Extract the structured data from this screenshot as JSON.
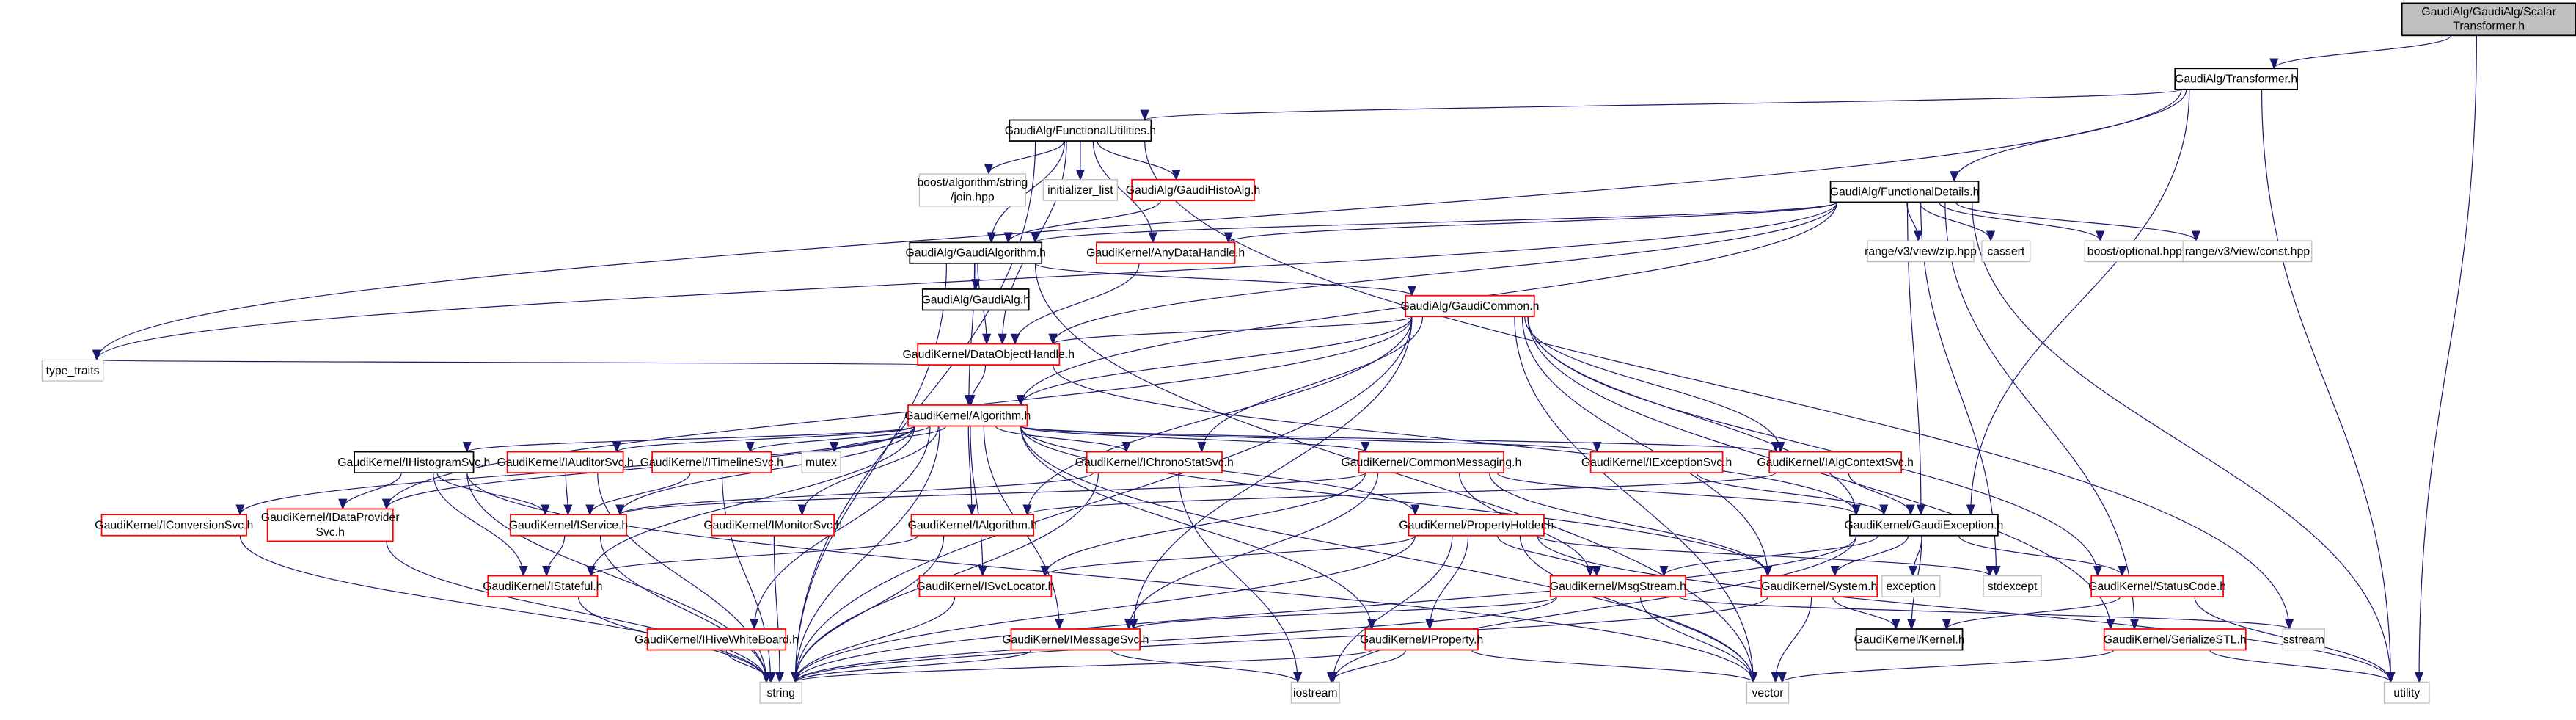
{
  "colors": {
    "edge": "#191970",
    "documented_border": "#ff0000",
    "system_border": "#bfbfbf",
    "local_border": "#000000",
    "root_fill": "#bfbfbf"
  },
  "nodes": [
    {
      "id": "scalar",
      "lines": [
        "GaudiAlg/GaudiAlg/Scalar",
        "Transformer.h"
      ],
      "kind": "root"
    },
    {
      "id": "transformer",
      "lines": [
        "GaudiAlg/Transformer.h"
      ],
      "kind": "local"
    },
    {
      "id": "funcutil",
      "lines": [
        "GaudiAlg/FunctionalUtilities.h"
      ],
      "kind": "local"
    },
    {
      "id": "boostjoin",
      "lines": [
        "boost/algorithm/string",
        "/join.hpp"
      ],
      "kind": "system"
    },
    {
      "id": "initlist",
      "lines": [
        "initializer_list"
      ],
      "kind": "system"
    },
    {
      "id": "histoalg",
      "lines": [
        "GaudiAlg/GaudiHistoAlg.h"
      ],
      "kind": "red"
    },
    {
      "id": "funcdetails",
      "lines": [
        "GaudiAlg/FunctionalDetails.h"
      ],
      "kind": "local"
    },
    {
      "id": "gaudialgorithm",
      "lines": [
        "GaudiAlg/GaudiAlgorithm.h"
      ],
      "kind": "local"
    },
    {
      "id": "anydata",
      "lines": [
        "GaudiKernel/AnyDataHandle.h"
      ],
      "kind": "red"
    },
    {
      "id": "zip",
      "lines": [
        "range/v3/view/zip.hpp"
      ],
      "kind": "system"
    },
    {
      "id": "cassert",
      "lines": [
        "cassert"
      ],
      "kind": "system"
    },
    {
      "id": "optional",
      "lines": [
        "boost/optional.hpp"
      ],
      "kind": "system"
    },
    {
      "id": "const",
      "lines": [
        "range/v3/view/const.hpp"
      ],
      "kind": "system"
    },
    {
      "id": "gaudialg",
      "lines": [
        "GaudiAlg/GaudiAlg.h"
      ],
      "kind": "local"
    },
    {
      "id": "gaudicommon",
      "lines": [
        "GaudiAlg/GaudiCommon.h"
      ],
      "kind": "red"
    },
    {
      "id": "dataobj",
      "lines": [
        "GaudiKernel/DataObjectHandle.h"
      ],
      "kind": "red"
    },
    {
      "id": "typetraits",
      "lines": [
        "type_traits"
      ],
      "kind": "system"
    },
    {
      "id": "algorithm",
      "lines": [
        "GaudiKernel/Algorithm.h"
      ],
      "kind": "red"
    },
    {
      "id": "ihisto",
      "lines": [
        "GaudiKernel/IHistogramSvc.h"
      ],
      "kind": "local"
    },
    {
      "id": "iauditor",
      "lines": [
        "GaudiKernel/IAuditorSvc.h"
      ],
      "kind": "red"
    },
    {
      "id": "itimeline",
      "lines": [
        "GaudiKernel/ITimelineSvc.h"
      ],
      "kind": "red"
    },
    {
      "id": "mutex",
      "lines": [
        "mutex"
      ],
      "kind": "system"
    },
    {
      "id": "ichrono",
      "lines": [
        "GaudiKernel/IChronoStatSvc.h"
      ],
      "kind": "red"
    },
    {
      "id": "commonmsg",
      "lines": [
        "GaudiKernel/CommonMessaging.h"
      ],
      "kind": "red"
    },
    {
      "id": "iexception",
      "lines": [
        "GaudiKernel/IExceptionSvc.h"
      ],
      "kind": "red"
    },
    {
      "id": "ialgctx",
      "lines": [
        "GaudiKernel/IAlgContextSvc.h"
      ],
      "kind": "red"
    },
    {
      "id": "iconversion",
      "lines": [
        "GaudiKernel/IConversionSvc.h"
      ],
      "kind": "red"
    },
    {
      "id": "idataprov",
      "lines": [
        "GaudiKernel/IDataProvider",
        "Svc.h"
      ],
      "kind": "red"
    },
    {
      "id": "iservice",
      "lines": [
        "GaudiKernel/IService.h"
      ],
      "kind": "red"
    },
    {
      "id": "imonitor",
      "lines": [
        "GaudiKernel/IMonitorSvc.h"
      ],
      "kind": "red"
    },
    {
      "id": "ialgorithm",
      "lines": [
        "GaudiKernel/IAlgorithm.h"
      ],
      "kind": "red"
    },
    {
      "id": "propholder",
      "lines": [
        "GaudiKernel/PropertyHolder.h"
      ],
      "kind": "red"
    },
    {
      "id": "gaudiexc",
      "lines": [
        "GaudiKernel/GaudiException.h"
      ],
      "kind": "local"
    },
    {
      "id": "istateful",
      "lines": [
        "GaudiKernel/IStateful.h"
      ],
      "kind": "red"
    },
    {
      "id": "isvcloc",
      "lines": [
        "GaudiKernel/ISvcLocator.h"
      ],
      "kind": "red"
    },
    {
      "id": "msgstream",
      "lines": [
        "GaudiKernel/MsgStream.h"
      ],
      "kind": "red"
    },
    {
      "id": "system",
      "lines": [
        "GaudiKernel/System.h"
      ],
      "kind": "red"
    },
    {
      "id": "exception",
      "lines": [
        "exception"
      ],
      "kind": "system"
    },
    {
      "id": "stdexcept",
      "lines": [
        "stdexcept"
      ],
      "kind": "system"
    },
    {
      "id": "statuscode",
      "lines": [
        "GaudiKernel/StatusCode.h"
      ],
      "kind": "red"
    },
    {
      "id": "ihive",
      "lines": [
        "GaudiKernel/IHiveWhiteBoard.h"
      ],
      "kind": "red"
    },
    {
      "id": "imsgsvc",
      "lines": [
        "GaudiKernel/IMessageSvc.h"
      ],
      "kind": "red"
    },
    {
      "id": "iproperty",
      "lines": [
        "GaudiKernel/IProperty.h"
      ],
      "kind": "red"
    },
    {
      "id": "kernel",
      "lines": [
        "GaudiKernel/Kernel.h"
      ],
      "kind": "local"
    },
    {
      "id": "serialize",
      "lines": [
        "GaudiKernel/SerializeSTL.h"
      ],
      "kind": "red"
    },
    {
      "id": "sstream",
      "lines": [
        "sstream"
      ],
      "kind": "system"
    },
    {
      "id": "string",
      "lines": [
        "string"
      ],
      "kind": "system"
    },
    {
      "id": "iostream",
      "lines": [
        "iostream"
      ],
      "kind": "system"
    },
    {
      "id": "vector",
      "lines": [
        "vector"
      ],
      "kind": "system"
    },
    {
      "id": "utility",
      "lines": [
        "utility"
      ],
      "kind": "system"
    }
  ],
  "edges": [
    [
      "scalar",
      "transformer"
    ],
    [
      "scalar",
      "utility"
    ],
    [
      "transformer",
      "funcutil"
    ],
    [
      "transformer",
      "funcdetails"
    ],
    [
      "transformer",
      "typetraits"
    ],
    [
      "transformer",
      "gaudiexc"
    ],
    [
      "transformer",
      "utility"
    ],
    [
      "funcutil",
      "boostjoin"
    ],
    [
      "funcutil",
      "initlist"
    ],
    [
      "funcutil",
      "histoalg"
    ],
    [
      "funcutil",
      "gaudialgorithm"
    ],
    [
      "funcutil",
      "anydata"
    ],
    [
      "funcutil",
      "dataobj"
    ],
    [
      "funcutil",
      "string"
    ],
    [
      "funcutil",
      "sstream"
    ],
    [
      "histoalg",
      "gaudialgorithm"
    ],
    [
      "funcdetails",
      "gaudialgorithm"
    ],
    [
      "funcdetails",
      "anydata"
    ],
    [
      "funcdetails",
      "dataobj"
    ],
    [
      "funcdetails",
      "zip"
    ],
    [
      "funcdetails",
      "cassert"
    ],
    [
      "funcdetails",
      "optional"
    ],
    [
      "funcdetails",
      "const"
    ],
    [
      "funcdetails",
      "algorithm"
    ],
    [
      "funcdetails",
      "typetraits"
    ],
    [
      "funcdetails",
      "gaudiexc"
    ],
    [
      "funcdetails",
      "stdexcept"
    ],
    [
      "funcdetails",
      "utility"
    ],
    [
      "funcdetails",
      "serialize"
    ],
    [
      "gaudialgorithm",
      "gaudialg"
    ],
    [
      "gaudialgorithm",
      "gaudicommon"
    ],
    [
      "gaudialgorithm",
      "dataobj"
    ],
    [
      "gaudialgorithm",
      "algorithm"
    ],
    [
      "gaudialgorithm",
      "string"
    ],
    [
      "gaudialgorithm",
      "vector"
    ],
    [
      "anydata",
      "dataobj"
    ],
    [
      "gaudicommon",
      "dataobj"
    ],
    [
      "gaudicommon",
      "algorithm"
    ],
    [
      "gaudicommon",
      "ichrono"
    ],
    [
      "gaudicommon",
      "ialgctx"
    ],
    [
      "gaudicommon",
      "gaudiexc"
    ],
    [
      "gaudicommon",
      "statuscode"
    ],
    [
      "gaudicommon",
      "system"
    ],
    [
      "gaudicommon",
      "string"
    ],
    [
      "gaudicommon",
      "vector"
    ],
    [
      "gaudicommon",
      "ialgorithm"
    ],
    [
      "gaudicommon",
      "idataprov"
    ],
    [
      "gaudicommon",
      "imsgsvc"
    ],
    [
      "gaudicommon",
      "serialize"
    ],
    [
      "dataobj",
      "algorithm"
    ],
    [
      "dataobj",
      "typetraits"
    ],
    [
      "dataobj",
      "gaudiexc"
    ],
    [
      "algorithm",
      "ihisto"
    ],
    [
      "algorithm",
      "iauditor"
    ],
    [
      "algorithm",
      "itimeline"
    ],
    [
      "algorithm",
      "mutex"
    ],
    [
      "algorithm",
      "ichrono"
    ],
    [
      "algorithm",
      "commonmsg"
    ],
    [
      "algorithm",
      "iexception"
    ],
    [
      "algorithm",
      "ialgctx"
    ],
    [
      "algorithm",
      "iconversion"
    ],
    [
      "algorithm",
      "idataprov"
    ],
    [
      "algorithm",
      "iservice"
    ],
    [
      "algorithm",
      "imonitor"
    ],
    [
      "algorithm",
      "ialgorithm"
    ],
    [
      "algorithm",
      "propholder"
    ],
    [
      "algorithm",
      "istateful"
    ],
    [
      "algorithm",
      "isvcloc"
    ],
    [
      "algorithm",
      "imsgsvc"
    ],
    [
      "algorithm",
      "iproperty"
    ],
    [
      "algorithm",
      "ihive"
    ],
    [
      "algorithm",
      "system"
    ],
    [
      "algorithm",
      "string"
    ],
    [
      "algorithm",
      "vector"
    ],
    [
      "ihisto",
      "idataprov"
    ],
    [
      "ihisto",
      "iservice"
    ],
    [
      "ihisto",
      "string"
    ],
    [
      "ihisto",
      "istateful"
    ],
    [
      "ihisto",
      "vector"
    ],
    [
      "iauditor",
      "iservice"
    ],
    [
      "iauditor",
      "string"
    ],
    [
      "itimeline",
      "iservice"
    ],
    [
      "itimeline",
      "string"
    ],
    [
      "ichrono",
      "iservice"
    ],
    [
      "ichrono",
      "string"
    ],
    [
      "ichrono",
      "iostream"
    ],
    [
      "commonmsg",
      "iservice"
    ],
    [
      "commonmsg",
      "msgstream"
    ],
    [
      "commonmsg",
      "imsgsvc"
    ],
    [
      "commonmsg",
      "isvcloc"
    ],
    [
      "commonmsg",
      "gaudiexc"
    ],
    [
      "commonmsg",
      "system"
    ],
    [
      "iexception",
      "gaudiexc"
    ],
    [
      "ialgctx",
      "gaudiexc"
    ],
    [
      "ialgctx",
      "ialgorithm"
    ],
    [
      "iconversion",
      "string"
    ],
    [
      "idataprov",
      "string"
    ],
    [
      "iservice",
      "istateful"
    ],
    [
      "iservice",
      "string"
    ],
    [
      "imonitor",
      "string"
    ],
    [
      "ialgorithm",
      "istateful"
    ],
    [
      "ialgorithm",
      "string"
    ],
    [
      "propholder",
      "iproperty"
    ],
    [
      "propholder",
      "msgstream"
    ],
    [
      "propholder",
      "isvcloc"
    ],
    [
      "propholder",
      "string"
    ],
    [
      "propholder",
      "iostream"
    ],
    [
      "propholder",
      "vector"
    ],
    [
      "propholder",
      "stdexcept"
    ],
    [
      "propholder",
      "utility"
    ],
    [
      "gaudiexc",
      "msgstream"
    ],
    [
      "gaudiexc",
      "system"
    ],
    [
      "gaudiexc",
      "exception"
    ],
    [
      "gaudiexc",
      "kernel"
    ],
    [
      "gaudiexc",
      "statuscode"
    ],
    [
      "gaudiexc",
      "string"
    ],
    [
      "gaudiexc",
      "iostream"
    ],
    [
      "istateful",
      "string"
    ],
    [
      "isvcloc",
      "string"
    ],
    [
      "msgstream",
      "imsgsvc"
    ],
    [
      "msgstream",
      "string"
    ],
    [
      "msgstream",
      "vector"
    ],
    [
      "msgstream",
      "sstream"
    ],
    [
      "system",
      "kernel"
    ],
    [
      "system",
      "vector"
    ],
    [
      "system",
      "string"
    ],
    [
      "statuscode",
      "kernel"
    ],
    [
      "statuscode",
      "utility"
    ],
    [
      "ihive",
      "string"
    ],
    [
      "imsgsvc",
      "string"
    ],
    [
      "imsgsvc",
      "iostream"
    ],
    [
      "iproperty",
      "string"
    ],
    [
      "iproperty",
      "iostream"
    ],
    [
      "iproperty",
      "vector"
    ],
    [
      "serialize",
      "vector"
    ],
    [
      "serialize",
      "utility"
    ]
  ]
}
